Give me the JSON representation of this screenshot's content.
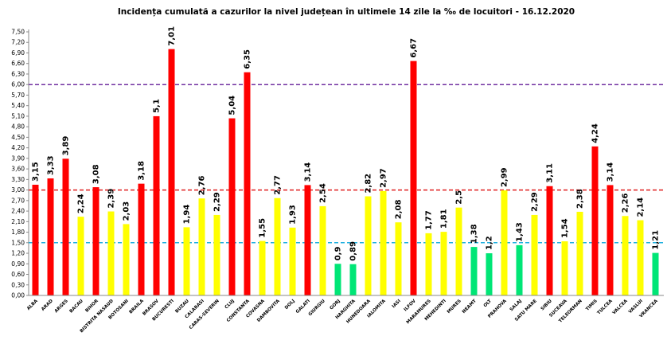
{
  "chart_data": {
    "type": "bar",
    "title": "Incidența cumulată a cazurilor la nivel județean în ultimele 14 zile   la ‰ de locuitori  - 16.12.2020",
    "xlabel": "",
    "ylabel": "",
    "ylim": [
      0,
      7.5
    ],
    "ytick_step": 0.3,
    "grid": false,
    "categories": [
      "ALBA",
      "ARAD",
      "ARGES",
      "BACAU",
      "BIHOR",
      "BISTRITA NASAUD",
      "BOTOSANI",
      "BRAILA",
      "BRASOV",
      "BUCURESTI",
      "BUZAU",
      "CALARASI",
      "CARAS-SEVERIN",
      "CLUJ",
      "CONSTANTA",
      "COVASNA",
      "DAMBOVITA",
      "DOLJ",
      "GALATI",
      "GIURGIU",
      "GORJ",
      "HARGHITA",
      "HUNEDOARA",
      "IALOMITA",
      "IASI",
      "ILFOV",
      "MARAMURES",
      "MEHEDINTI",
      "MURES",
      "NEAMT",
      "OLT",
      "PRAHOVA",
      "SALAJ",
      "SATU MARE",
      "SIBIU",
      "SUCEAVA",
      "TELEORMAN",
      "TIMIS",
      "TULCEA",
      "VALCEA",
      "VASLUI",
      "VRANCEA"
    ],
    "values": [
      3.15,
      3.33,
      3.89,
      2.24,
      3.08,
      2.39,
      2.03,
      3.18,
      5.1,
      7.01,
      1.94,
      2.76,
      2.29,
      5.04,
      6.35,
      1.55,
      2.77,
      1.93,
      3.14,
      2.54,
      0.9,
      0.89,
      2.82,
      2.97,
      2.08,
      6.67,
      1.77,
      1.81,
      2.5,
      1.38,
      1.2,
      2.99,
      1.43,
      2.29,
      3.11,
      1.54,
      2.38,
      4.24,
      3.14,
      2.26,
      2.14,
      1.21
    ],
    "labels": [
      "3,15",
      "3,33",
      "3,89",
      "2,24",
      "3,08",
      "2,39",
      "2,03",
      "3,18",
      "5,1",
      "7,01",
      "1,94",
      "2,76",
      "2,29",
      "5,04",
      "6,35",
      "1,55",
      "2,77",
      "1,93",
      "3,14",
      "2,54",
      "0,9",
      "0,89",
      "2,82",
      "2,97",
      "2,08",
      "6,67",
      "1,77",
      "1,81",
      "2,5",
      "1,38",
      "1,2",
      "2,99",
      "1,43",
      "2,29",
      "3,11",
      "1,54",
      "2,38",
      "4,24",
      "3,14",
      "2,26",
      "2,14",
      "1,21"
    ],
    "thresholds": [
      {
        "value": 6.0,
        "color": "#7030a0",
        "style": "dashed"
      },
      {
        "value": 3.0,
        "color": "#e02020",
        "style": "dashed"
      },
      {
        "value": 1.5,
        "color": "#20b0e0",
        "style": "dashed"
      }
    ],
    "colors": {
      "high": "#ff0000",
      "medium": "#ffff00",
      "low": "#00e676"
    },
    "color_rule": "red > 3, yellow 1.5–3, green < 1.5"
  }
}
